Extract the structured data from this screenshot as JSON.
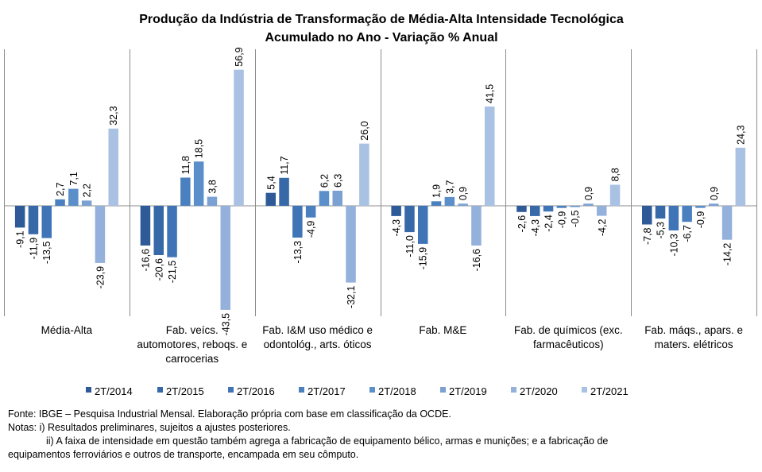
{
  "chart_data": {
    "type": "bar",
    "title": "Produção da Indústria de Transformação de Média-Alta Intensidade Tecnológica",
    "subtitle": "Acumulado no Ano - Variação % Anual",
    "categories": [
      [
        "Média-Alta"
      ],
      [
        "Fab. veícs.",
        "automotores, reboqs. e",
        "carrocerias"
      ],
      [
        "Fab. I&M uso médico e",
        "odontológ., arts. óticos"
      ],
      [
        "Fab. M&E"
      ],
      [
        "Fab. de químicos (exc.",
        "farmacêuticos)"
      ],
      [
        "Fab. máqs., apars. e",
        "maters. elétricos"
      ]
    ],
    "series": [
      {
        "name": "2T/2014",
        "color": "#2e5b97",
        "values": [
          -9.1,
          -16.6,
          5.4,
          -4.3,
          -2.6,
          -7.8
        ],
        "labels": [
          "-9,1",
          "-16,6",
          "5,4",
          "-4,3",
          "-2,6",
          "-7,8"
        ]
      },
      {
        "name": "2T/2015",
        "color": "#3768a8",
        "values": [
          -11.9,
          -20.6,
          11.7,
          -11.0,
          -4.3,
          -5.3
        ],
        "labels": [
          "-11,9",
          "-20,6",
          "11,7",
          "-11,0",
          "-4,3",
          "-5,3"
        ]
      },
      {
        "name": "2T/2016",
        "color": "#3f74b6",
        "values": [
          -13.5,
          -21.5,
          -13.3,
          -15.9,
          -2.4,
          -10.3
        ],
        "labels": [
          "-13,5",
          "-21,5",
          "-13,3",
          "-15,9",
          "-2,4",
          "-10,3"
        ]
      },
      {
        "name": "2T/2017",
        "color": "#4a80c0",
        "values": [
          2.7,
          11.8,
          -4.9,
          1.9,
          -0.9,
          -6.7
        ],
        "labels": [
          "2,7",
          "11,8",
          "-4,9",
          "1,9",
          "-0,9",
          "-6,7"
        ]
      },
      {
        "name": "2T/2018",
        "color": "#5b8fca",
        "values": [
          7.1,
          18.5,
          6.2,
          3.7,
          -0.5,
          -0.9
        ],
        "labels": [
          "7,1",
          "18,5",
          "6,2",
          "3,7",
          "-0,5",
          "-0,9"
        ]
      },
      {
        "name": "2T/2019",
        "color": "#7ba1d2",
        "values": [
          2.2,
          3.8,
          6.3,
          0.9,
          0.9,
          0.9
        ],
        "labels": [
          "2,2",
          "3,8",
          "6,3",
          "0,9",
          "0,9",
          "0,9"
        ]
      },
      {
        "name": "2T/2020",
        "color": "#93b1da",
        "values": [
          -23.9,
          -43.5,
          -32.1,
          -16.6,
          -4.2,
          -14.2
        ],
        "labels": [
          "-23,9",
          "-43,5",
          "-32,1",
          "-16,6",
          "-4,2",
          "-14,2"
        ]
      },
      {
        "name": "2T/2021",
        "color": "#a9c1e3",
        "values": [
          32.3,
          56.9,
          26.0,
          41.5,
          8.8,
          24.3
        ],
        "labels": [
          "32,3",
          "56,9",
          "26,0",
          "41,5",
          "8,8",
          "24,3"
        ]
      }
    ],
    "ylim": [
      -52,
      62
    ],
    "grid": false,
    "legend_position": "bottom"
  },
  "notes": {
    "source": "Fonte: IBGE – Pesquisa Industrial Mensal. Elaboração própria com base em classificação da OCDE.",
    "note_i": "Notas: i) Resultados preliminares, sujeitos a ajustes posteriores.",
    "note_ii": "ii) A faixa de intensidade em questão também agrega a fabricação de equipamento bélico, armas e munições; e a fabricação de",
    "note_ii_cont": "equipamentos ferroviários e outros de transporte, encampada em seu cômputo."
  }
}
